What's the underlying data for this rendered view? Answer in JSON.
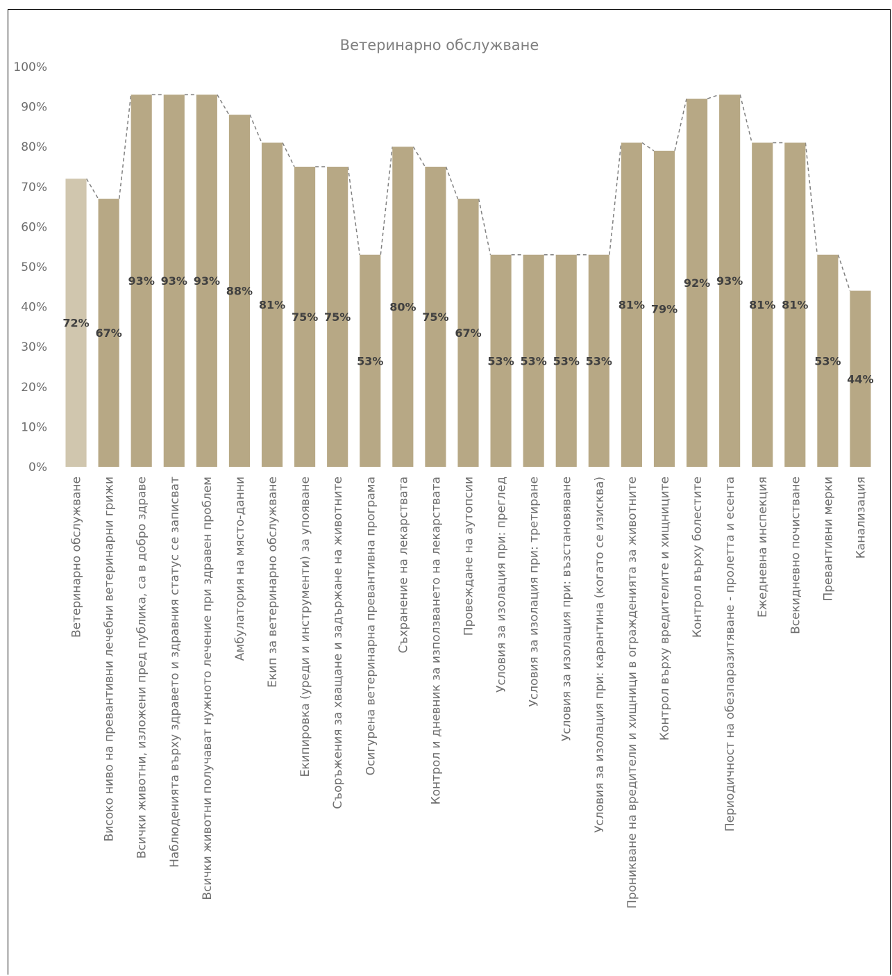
{
  "chart_data": {
    "type": "bar",
    "title": "Ветеринарно обслужване",
    "xlabel": "",
    "ylabel": "",
    "ylim": [
      0,
      100
    ],
    "y_ticks": [
      "0%",
      "10%",
      "20%",
      "30%",
      "40%",
      "50%",
      "60%",
      "70%",
      "80%",
      "90%",
      "100%"
    ],
    "categories": [
      "Ветеринарно обслужване",
      "Високо ниво на превантивни лечебни ветеринарни грижи",
      "Всички животни, изложени пред публика, са в добро здраве",
      "Наблюденията върху здравето и здравния статус се записват",
      "Всички животни получават нужното лечение при здравен проблем",
      "Амбулатория на място-данни",
      "Екип за ветеринарно обслужване",
      "Екипировка (уреди и инструменти) за упояване",
      "Съоръжения за хващане и задържане на животните",
      "Осигурена ветеринарна превантивна програма",
      "Съхранение на лекарствата",
      "Контрол и дневник за използването на лекарствата",
      "Провеждане на аутопсии",
      "Условия за изолация при: преглед",
      "Условия за изолация при: третиране",
      "Условия за изолация при: възстановяване",
      "Условия за изолация при: карантина (когато се изисква)",
      "Проникване на вредители и хищници в огражденията за животните",
      "Контрол върху вредителите и хищниците",
      "Контрол върху болестите",
      "Периодичност на обезпаразитяване - пролетта и есента",
      "Ежедневна инспекция",
      "Всекидневно почистване",
      "Превантивни мерки",
      "Канализация"
    ],
    "values": [
      72,
      67,
      93,
      93,
      93,
      88,
      81,
      75,
      75,
      53,
      80,
      75,
      67,
      53,
      53,
      53,
      53,
      81,
      79,
      92,
      93,
      81,
      81,
      53,
      44
    ],
    "data_labels": [
      "72%",
      "67%",
      "93%",
      "93%",
      "93%",
      "88%",
      "81%",
      "75%",
      "75%",
      "53%",
      "80%",
      "75%",
      "67%",
      "53%",
      "53%",
      "53%",
      "53%",
      "81%",
      "79%",
      "92%",
      "93%",
      "81%",
      "81%",
      "53%",
      "44%"
    ],
    "grid": false,
    "legend": "none",
    "colors": {
      "first_bar": "#d0c6ae",
      "bar": "#b7a885",
      "connector": "#7f7f7f"
    },
    "connector_line": "dashed"
  }
}
